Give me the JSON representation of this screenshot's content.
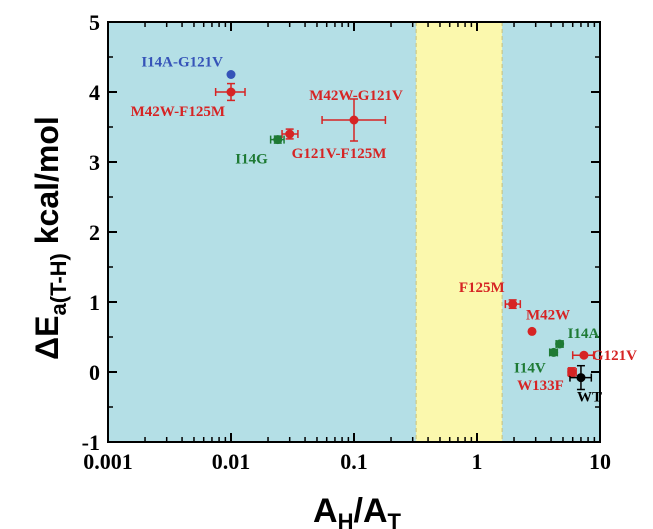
{
  "chart_data": {
    "type": "scatter",
    "x_scale": "log",
    "xlim": [
      0.001,
      10
    ],
    "ylim": [
      -1,
      5
    ],
    "x_ticks": [
      "0.001",
      "0.01",
      "0.1",
      "1",
      "10"
    ],
    "y_ticks": [
      "-1",
      "0",
      "1",
      "2",
      "3",
      "4",
      "5"
    ],
    "xlabel": {
      "main": "A",
      "sub1": "H",
      "slash": "/A",
      "sub2": "T"
    },
    "ylabel": {
      "delta": "ΔE",
      "sub": "a(T-H)",
      "unit": " kcal/mol"
    },
    "regions": [
      {
        "x_from": 0.001,
        "x_to": 10,
        "color": "#b4dfe6"
      },
      {
        "x_from": 0.32,
        "x_to": 1.6,
        "color": "#fbf8ad"
      }
    ],
    "colors": {
      "red": "#d62424",
      "green": "#1e7a34",
      "blue": "#3553b8",
      "black": "#000000"
    },
    "points": [
      {
        "label": "I14A-G121V",
        "x": 0.01,
        "y": 4.25,
        "color": "#3553b8",
        "xerr": null,
        "yerr": null
      },
      {
        "label": "M42W-F125M",
        "x": 0.01,
        "y": 4.0,
        "color": "#d62424",
        "xerr": [
          0.0075,
          0.013
        ],
        "yerr": 0.12
      },
      {
        "label": "M42W-G121V",
        "x": 0.1,
        "y": 3.6,
        "color": "#d62424",
        "xerr": [
          0.055,
          0.18
        ],
        "yerr": 0.3
      },
      {
        "label": "G121V-F125M",
        "x": 0.03,
        "y": 3.4,
        "color": "#d62424",
        "xerr": [
          0.026,
          0.035
        ],
        "yerr": 0.07
      },
      {
        "label": "I14G",
        "x": 0.024,
        "y": 3.32,
        "color": "#1e7a34",
        "xerr": [
          0.021,
          0.027
        ],
        "yerr": 0.05
      },
      {
        "label": "F125M",
        "x": 1.95,
        "y": 0.97,
        "color": "#d62424",
        "xerr": [
          1.7,
          2.25
        ],
        "yerr": 0.06
      },
      {
        "label": "M42W",
        "x": 2.8,
        "y": 0.58,
        "color": "#d62424",
        "xerr": null,
        "yerr": null
      },
      {
        "label": "I14A",
        "x": 4.7,
        "y": 0.4,
        "color": "#1e7a34",
        "xerr": [
          4.4,
          5.0
        ],
        "yerr": 0.04
      },
      {
        "label": "I14V",
        "x": 4.2,
        "y": 0.28,
        "color": "#1e7a34",
        "xerr": [
          3.9,
          4.5
        ],
        "yerr": 0.04
      },
      {
        "label": "G121V",
        "x": 7.4,
        "y": 0.24,
        "color": "#d62424",
        "xerr": [
          6.0,
          8.9
        ],
        "yerr": null
      },
      {
        "label": "W133F",
        "x": 5.9,
        "y": 0.0,
        "color": "#d62424",
        "xerr": [
          5.5,
          6.4
        ],
        "yerr": 0.06
      },
      {
        "label": "WT",
        "x": 7.0,
        "y": -0.08,
        "color": "#000000",
        "xerr": [
          5.7,
          8.5
        ],
        "yerr": 0.17
      }
    ]
  }
}
